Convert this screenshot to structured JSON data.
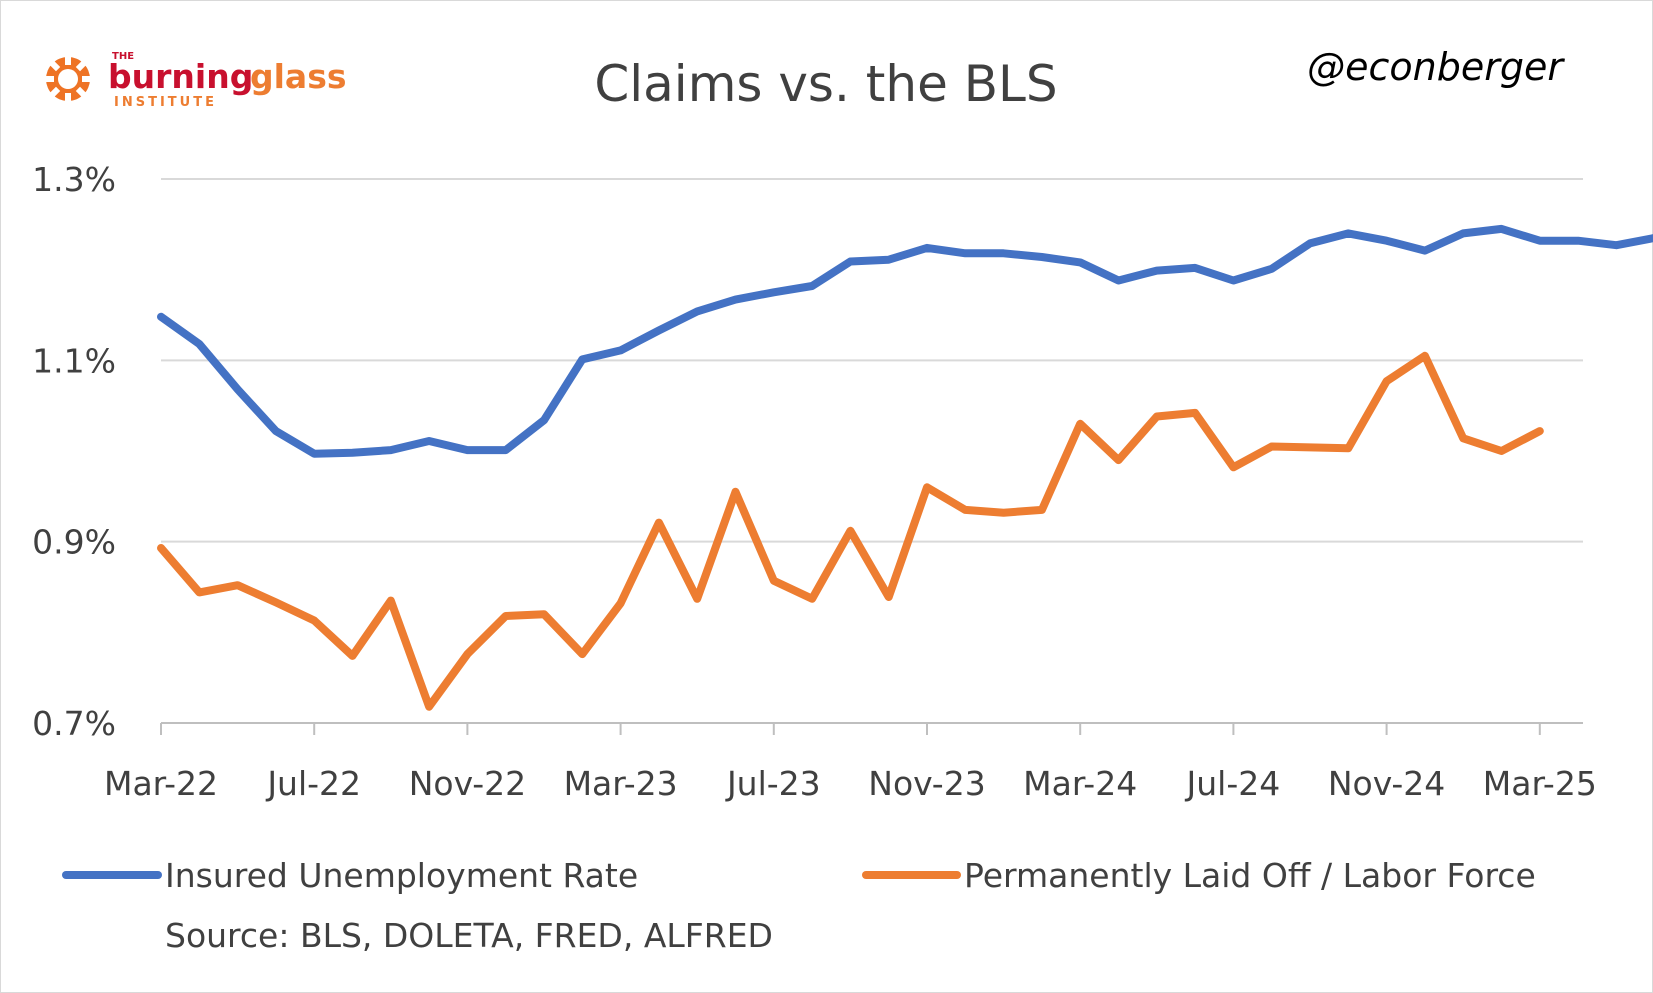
{
  "logo": {
    "the": "THE",
    "word1": "burning",
    "word2": "glass",
    "institute": "INSTITUTE",
    "colors": {
      "red": "#c8102e",
      "orange": "#ed7d31",
      "sun": "#ee7325"
    }
  },
  "handle": "@econberger",
  "chart_data": {
    "type": "line",
    "title": "Claims vs. the BLS",
    "xlabel": "",
    "ylabel": "",
    "ylim": [
      0.7,
      1.3
    ],
    "y_ticks": [
      "0.7%",
      "0.9%",
      "1.1%",
      "1.3%"
    ],
    "y_tick_values": [
      0.7,
      0.9,
      1.1,
      1.3
    ],
    "x_tick_labels": [
      "Mar-22",
      "Jul-22",
      "Nov-22",
      "Mar-23",
      "Jul-23",
      "Nov-23",
      "Mar-24",
      "Jul-24",
      "Nov-24",
      "Mar-25"
    ],
    "x_start": "2022-03",
    "grid": true,
    "legend_position": "bottom",
    "series": [
      {
        "name": "Insured Unemployment Rate",
        "color": "#4472c4",
        "values": [
          1.148,
          1.118,
          1.068,
          1.022,
          0.997,
          0.998,
          1.001,
          1.011,
          1.001,
          1.001,
          1.034,
          1.101,
          1.111,
          1.133,
          1.154,
          1.167,
          1.175,
          1.182,
          1.209,
          1.211,
          1.224,
          1.218,
          1.218,
          1.214,
          1.208,
          1.188,
          1.199,
          1.202,
          1.188,
          1.201,
          1.229,
          1.24,
          1.232,
          1.221,
          1.24,
          1.245,
          1.232,
          1.232,
          1.227,
          1.235
        ]
      },
      {
        "name": "Permanently Laid Off / Labor Force",
        "color": "#ed7d31",
        "values": [
          0.893,
          0.844,
          0.852,
          0.833,
          0.813,
          0.774,
          0.835,
          0.718,
          0.776,
          0.818,
          0.82,
          0.776,
          0.832,
          0.921,
          0.837,
          0.955,
          0.857,
          0.837,
          0.912,
          0.839,
          0.96,
          0.935,
          0.932,
          0.935,
          1.03,
          0.99,
          1.038,
          1.042,
          0.982,
          1.005,
          1.004,
          1.003,
          1.077,
          1.105,
          1.014,
          1.0,
          1.022
        ]
      }
    ]
  },
  "source": "Source: BLS, DOLETA, FRED, ALFRED"
}
